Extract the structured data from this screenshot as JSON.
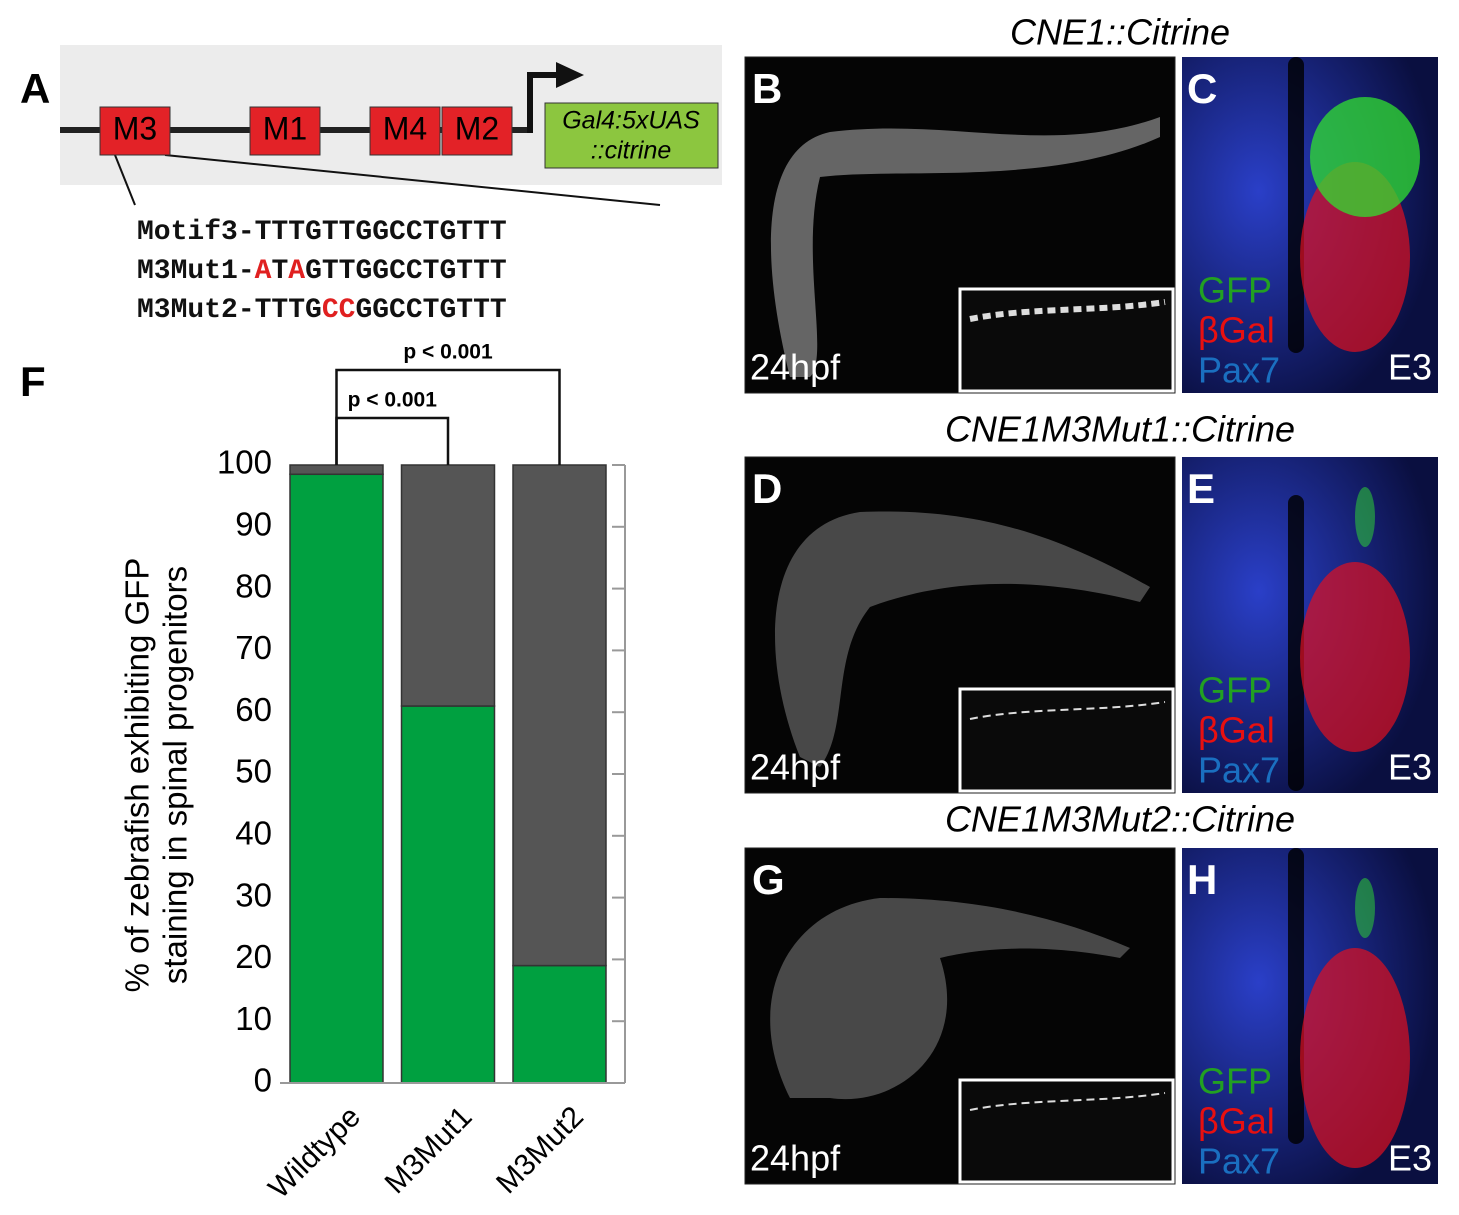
{
  "panel_a": {
    "label": "A",
    "modules": [
      "M3",
      "M1",
      "M4",
      "M2"
    ],
    "reporter": [
      "Gal4:5xUAS",
      "::citrine"
    ],
    "sequences": [
      [
        {
          "text": "Motif3-TTTGTTGGCCTGTTT",
          "color": "#111111"
        }
      ],
      [
        {
          "text": "M3Mut1-",
          "color": "#111111"
        },
        {
          "text": "A",
          "color": "#e02020"
        },
        {
          "text": "T",
          "color": "#111111"
        },
        {
          "text": "A",
          "color": "#e02020"
        },
        {
          "text": "GTTGGCCTGTTT",
          "color": "#111111"
        }
      ],
      [
        {
          "text": "M3Mut2-TTTG",
          "color": "#111111"
        },
        {
          "text": "CC",
          "color": "#e02020"
        },
        {
          "text": "GGCCTGTTT",
          "color": "#111111"
        }
      ]
    ]
  },
  "image_rows": [
    {
      "title": "CNE1::Citrine",
      "embryo": {
        "label": "B",
        "stage": "24hpf"
      },
      "section": {
        "label": "C",
        "channels": [
          {
            "text": "GFP",
            "color": "#22a022"
          },
          {
            "text": "βGal",
            "color": "#e81010"
          },
          {
            "text": "Pax7",
            "color": "#1a6fc0"
          }
        ],
        "stage": "E3"
      }
    },
    {
      "title": "CNE1M3Mut1::Citrine",
      "embryo": {
        "label": "D",
        "stage": "24hpf"
      },
      "section": {
        "label": "E",
        "channels": [
          {
            "text": "GFP",
            "color": "#22a022"
          },
          {
            "text": "βGal",
            "color": "#e81010"
          },
          {
            "text": "Pax7",
            "color": "#1a6fc0"
          }
        ],
        "stage": "E3"
      }
    },
    {
      "title": "CNE1M3Mut2::Citrine",
      "embryo": {
        "label": "G",
        "stage": "24hpf"
      },
      "section": {
        "label": "H",
        "channels": [
          {
            "text": "GFP",
            "color": "#22a022"
          },
          {
            "text": "βGal",
            "color": "#e81010"
          },
          {
            "text": "Pax7",
            "color": "#1a6fc0"
          }
        ],
        "stage": "E3"
      }
    }
  ],
  "chart_data": {
    "type": "stacked-bar",
    "label": "F",
    "ylabel": [
      "% of zebrafish exhibiting GFP",
      "staining in spinal progenitors"
    ],
    "categories": [
      "Wildtype",
      "M3Mut1",
      "M3Mut2"
    ],
    "series": [
      {
        "color": "#00a040",
        "values": [
          98.5,
          61,
          19
        ]
      },
      {
        "color": "#555555",
        "values": [
          1.5,
          39,
          81
        ]
      }
    ],
    "ylim": [
      0,
      100
    ],
    "yticks": [
      0,
      10,
      20,
      30,
      40,
      50,
      60,
      70,
      80,
      90,
      100
    ],
    "annotations": [
      "p < 0.001",
      "p < 0.001"
    ]
  }
}
